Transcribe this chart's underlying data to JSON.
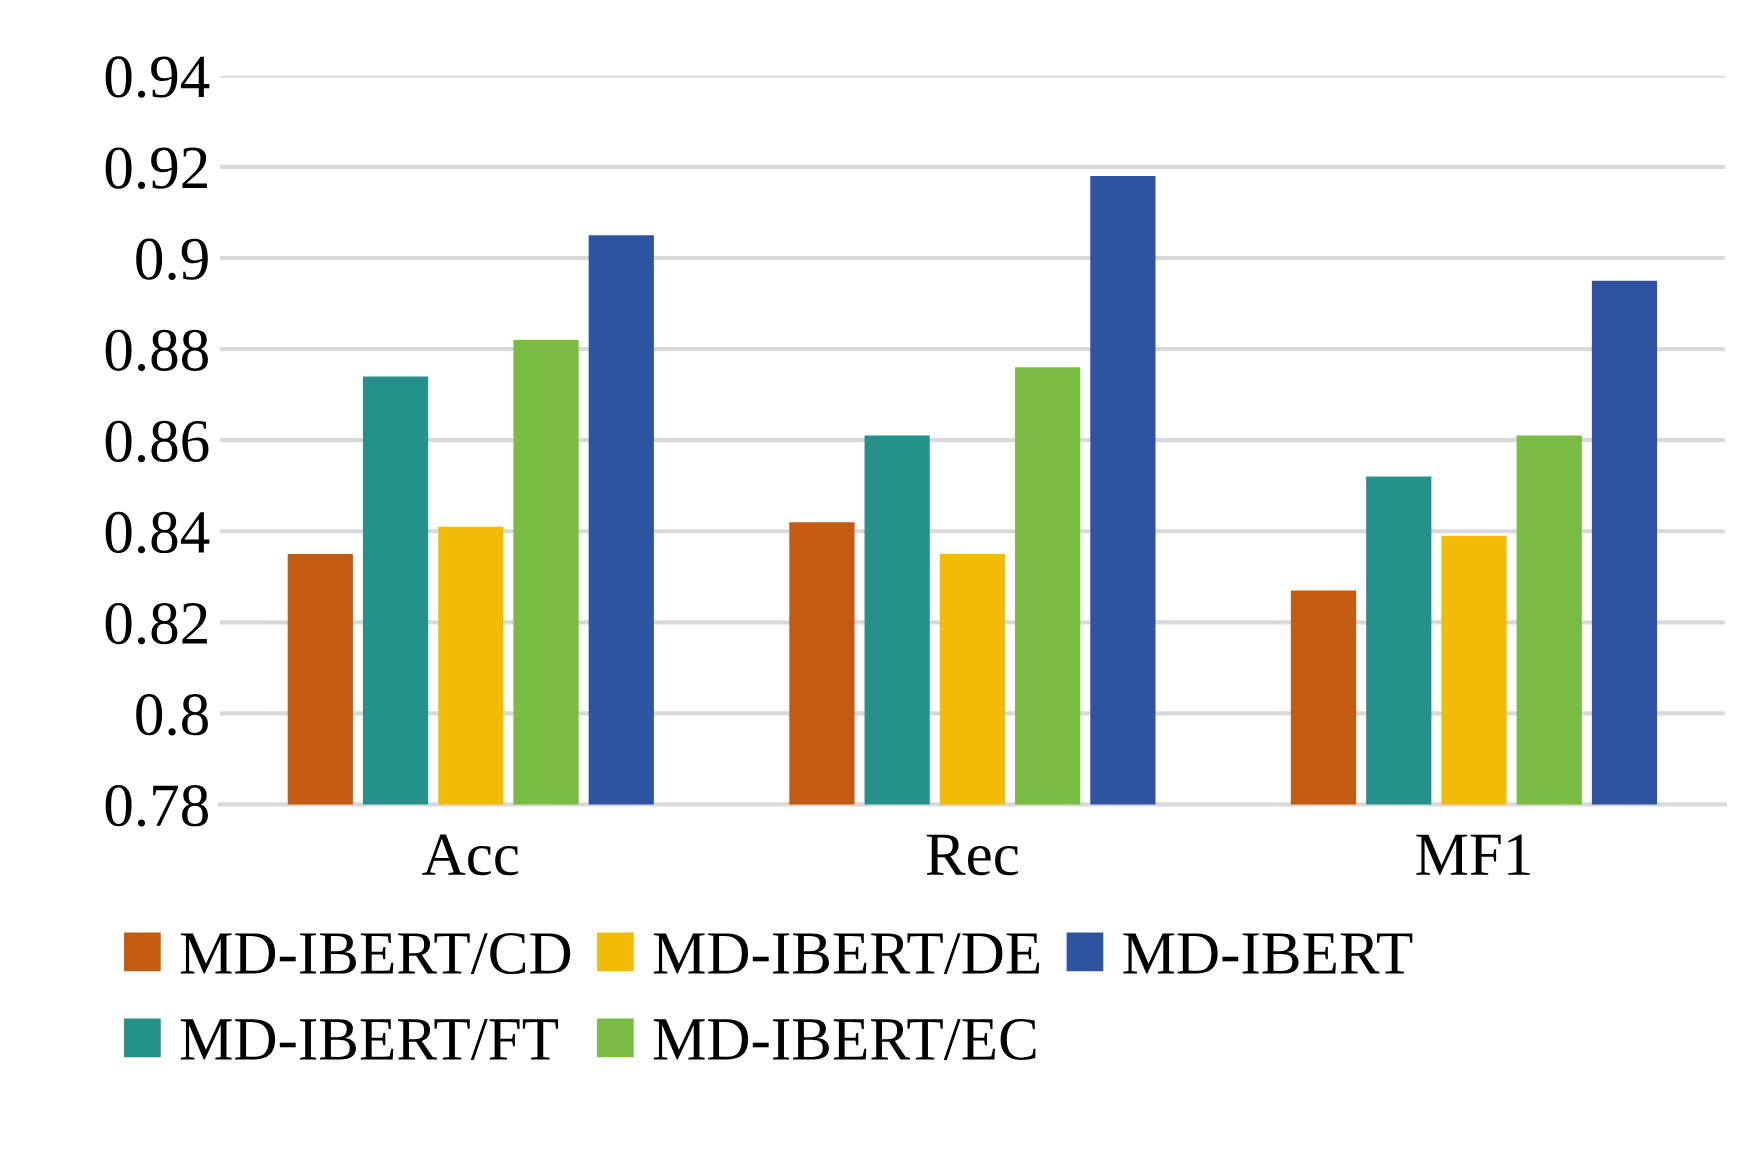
{
  "chart_data": {
    "type": "bar",
    "categories": [
      "Acc",
      "Rec",
      "MF1"
    ],
    "series": [
      {
        "name": "MD-IBERT/CD",
        "color": "#c55a11",
        "values": [
          0.835,
          0.842,
          0.827
        ]
      },
      {
        "name": "MD-IBERT/FT",
        "color": "#26908a",
        "values": [
          0.874,
          0.861,
          0.852
        ]
      },
      {
        "name": "MD-IBERT/DE",
        "color": "#f2bb05",
        "values": [
          0.841,
          0.835,
          0.839
        ]
      },
      {
        "name": "MD-IBERT/EC",
        "color": "#78bc41",
        "values": [
          0.882,
          0.876,
          0.861
        ]
      },
      {
        "name": "MD-IBERT",
        "color": "#2e54a1",
        "values": [
          0.905,
          0.918,
          0.895
        ]
      }
    ],
    "ylim": [
      0.78,
      0.94
    ],
    "yticks": [
      0.78,
      0.8,
      0.82,
      0.84,
      0.86,
      0.88,
      0.9,
      0.92,
      0.94
    ],
    "grid": "y",
    "legend": "bottom"
  }
}
